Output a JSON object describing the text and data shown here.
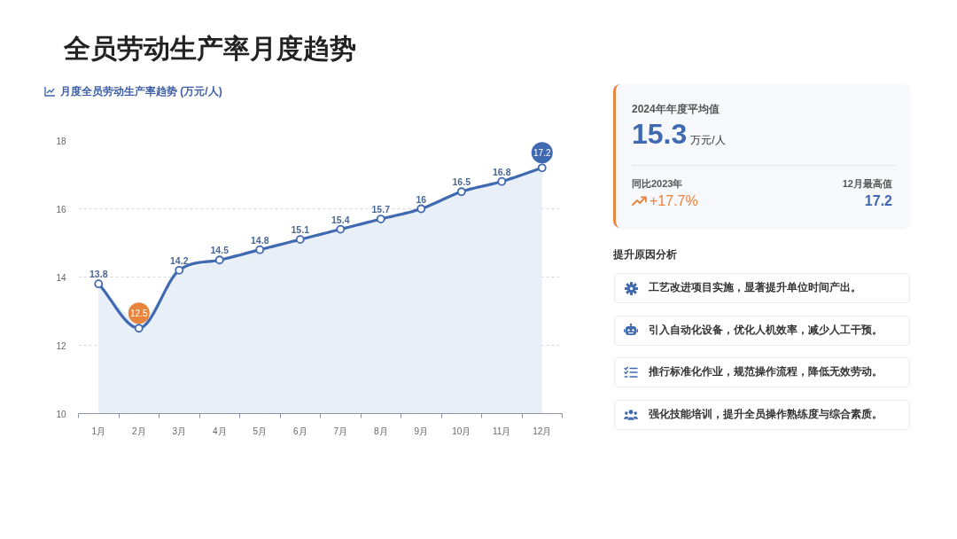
{
  "chart_data": [
    {
      "type": "area",
      "title": "全员劳动生产率月度趋势",
      "subtitle": "月度全员劳动生产率趋势 (万元/人)",
      "categories": [
        "1月",
        "2月",
        "3月",
        "4月",
        "5月",
        "6月",
        "7月",
        "8月",
        "9月",
        "10月",
        "11月",
        "12月"
      ],
      "values": [
        13.8,
        12.5,
        14.2,
        14.5,
        14.8,
        15.1,
        15.4,
        15.7,
        16,
        16.5,
        16.8,
        17.2
      ],
      "color": "#3f69b0",
      "value_labels": [
        "13.8",
        null,
        "14.2",
        "14.5",
        "14.8",
        "15.1",
        "15.4",
        "15.7",
        "16",
        "16.5",
        "16.8",
        null
      ],
      "ylim": [
        10,
        18
      ],
      "yticks": [
        10,
        12,
        14,
        16,
        18
      ],
      "grid": "y",
      "marker": "circle",
      "annotations": [
        {
          "text": "12.5",
          "x": "2月",
          "y": 12.5
        },
        {
          "text": "17.2",
          "x": "12月",
          "y": 17.2
        }
      ]
    },
    {
      "type": "other",
      "annotations": [
        "2024年年度平均值",
        "15.3",
        "万元/人",
        "同比2023年",
        "+17.7%",
        "12月最高值",
        "17.2"
      ]
    },
    {
      "type": "other",
      "title": "提升原因分析",
      "annotations": [
        "工艺改进项目实施，显著提升单位时间产出。",
        "引入自动化设备，优化人机效率，减少人工干预。",
        "推行标准化作业，规范操作流程，降低无效劳动。",
        "强化技能培训，提升全员操作熟练度与综合素质。"
      ]
    }
  ]
}
